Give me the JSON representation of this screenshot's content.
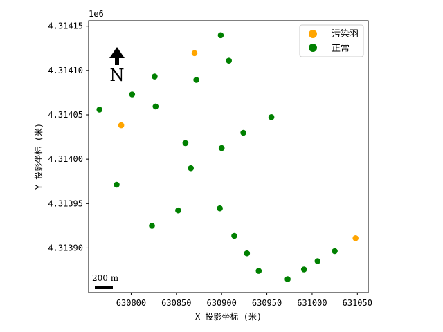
{
  "chart_data": {
    "type": "scatter",
    "xlabel": "X 投影坐标 (米)",
    "ylabel": "Y 投影坐标 (米)",
    "y_offset_label": "1e6",
    "xlim": [
      630753,
      631062
    ],
    "ylim": [
      4.3138497,
      4.314156
    ],
    "xticks": [
      630800,
      630850,
      630900,
      630950,
      631000,
      631050
    ],
    "xtick_labels": [
      "630800",
      "630850",
      "630900",
      "630950",
      "631000",
      "631050"
    ],
    "yticks": [
      4.3139,
      4.31395,
      4.314,
      4.31405,
      4.3141,
      4.31415
    ],
    "ytick_labels": [
      "4.31390",
      "4.31395",
      "4.31400",
      "4.31405",
      "4.31410",
      "4.31415"
    ],
    "legend_position": "upper-right",
    "grid": false,
    "north_label": "N",
    "scale_bar_label": "200 m",
    "series": [
      {
        "name": "污染羽",
        "color": "#ffa500",
        "points": [
          [
            630870,
            4.3141195
          ],
          [
            630789,
            4.3140382
          ],
          [
            631048,
            4.313911
          ]
        ]
      },
      {
        "name": "正常",
        "color": "#008000",
        "points": [
          [
            630899,
            4.3141398
          ],
          [
            630908,
            4.314111
          ],
          [
            630826,
            4.3140932
          ],
          [
            630872,
            4.3140894
          ],
          [
            630801,
            4.314073
          ],
          [
            630827,
            4.3140594
          ],
          [
            630765,
            4.3140559
          ],
          [
            630955,
            4.3140474
          ],
          [
            630924,
            4.3140297
          ],
          [
            630860,
            4.3140181
          ],
          [
            630900,
            4.3140125
          ],
          [
            630866,
            4.3139898
          ],
          [
            630784,
            4.3139713
          ],
          [
            630852,
            4.3139423
          ],
          [
            630898,
            4.3139446
          ],
          [
            630823,
            4.313925
          ],
          [
            630914,
            4.3139136
          ],
          [
            630928,
            4.313894
          ],
          [
            631025,
            4.3138965
          ],
          [
            631006,
            4.3138852
          ],
          [
            630941,
            4.3138742
          ],
          [
            630991,
            4.3138758
          ],
          [
            630973,
            4.3138648
          ]
        ]
      }
    ]
  }
}
